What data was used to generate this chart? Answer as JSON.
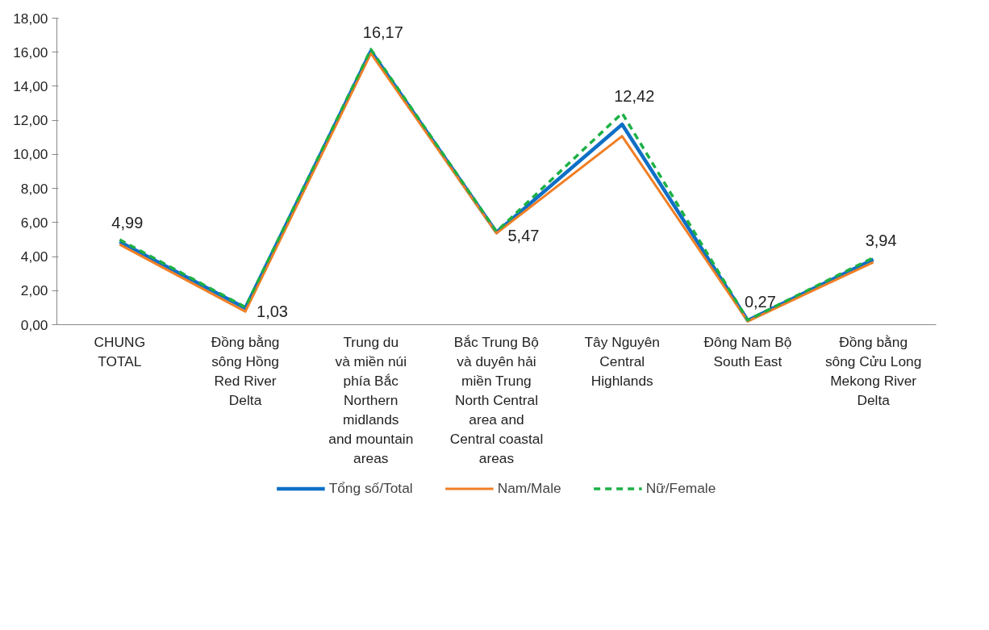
{
  "chart_data": {
    "type": "line",
    "categories": [
      "CHUNG\nTOTAL",
      "Đồng bằng\nsông Hồng\nRed River\nDelta",
      "Trung du\nvà miền núi\nphía Bắc\nNorthern\nmidlands\nand mountain\nareas",
      "Bắc Trung Bộ\nvà duyên hải\nmiền Trung\nNorth Central\narea and\nCentral coastal\nareas",
      "Tây Nguyên\nCentral\nHighlands",
      "Đông Nam Bộ\nSouth East",
      "Đồng bằng\nsông Cửu Long\nMekong River\nDelta"
    ],
    "series": [
      {
        "name": "Tổng số/Total",
        "color": "#0f6fc6",
        "line_style": "solid",
        "values": [
          4.87,
          0.97,
          16.07,
          5.42,
          11.76,
          0.25,
          3.83
        ]
      },
      {
        "name": "Nam/Male",
        "color": "#f07f25",
        "line_style": "solid",
        "values": [
          4.71,
          0.77,
          15.93,
          5.37,
          11.07,
          0.2,
          3.67
        ]
      },
      {
        "name": "Nữ/Female",
        "color": "#1db046",
        "line_style": "dashed",
        "values": [
          4.99,
          1.03,
          16.17,
          5.47,
          12.42,
          0.27,
          3.94
        ],
        "value_labels": [
          "4,99",
          "1,03",
          "16,17",
          "5,47",
          "12,42",
          "0,27",
          "3,94"
        ]
      }
    ],
    "ylim": [
      0,
      18
    ],
    "yticks": [
      {
        "value": 0,
        "label": "0,00"
      },
      {
        "value": 2,
        "label": "2,00"
      },
      {
        "value": 4,
        "label": "4,00"
      },
      {
        "value": 6,
        "label": "6,00"
      },
      {
        "value": 8,
        "label": "8,00"
      },
      {
        "value": 10,
        "label": "10,00"
      },
      {
        "value": 12,
        "label": "12,00"
      },
      {
        "value": 14,
        "label": "14,00"
      },
      {
        "value": 16,
        "label": "16,00"
      },
      {
        "value": 18,
        "label": "18,00"
      }
    ],
    "grid": false,
    "legend": "bottom",
    "marker": "none"
  }
}
